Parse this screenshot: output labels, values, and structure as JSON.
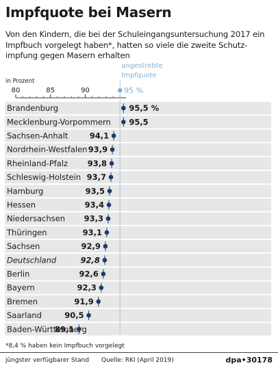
{
  "title": "Impfquote bei Masern",
  "subtitle": "Von den Kindern, die bei der Schuleingangsuntersuchung 2017 ein Impfbuch vorgelegt haben*, hatten so viele die zweite Schutz-impfung gegen Masern erhalten",
  "footnote": "*8,4 % haben kein Impfbuch vorgelegt",
  "footer": {
    "stand": "jüngster verfügbarer Stand",
    "source": "Quelle: RKI (April 2019)",
    "credit": "dpa•30178"
  },
  "colors": {
    "marker": "#1c3a6e",
    "row_bg": "#e7e7e7",
    "target": "#7fb2d9"
  },
  "chart_data": {
    "type": "dot",
    "xlabel": "in Prozent",
    "xticks": [
      80,
      85,
      90
    ],
    "xlim": [
      80,
      96
    ],
    "target": {
      "value": 95,
      "label_line1": "angestrebte",
      "label_line2": "Impfquote",
      "value_label": "95 %"
    },
    "categories": [
      "Brandenburg",
      "Mecklenburg-Vorpommern",
      "Sachsen-Anhalt",
      "Nordrhein-Westfalen",
      "Rheinland-Pfalz",
      "Schleswig-Holstein",
      "Hamburg",
      "Hessen",
      "Niedersachsen",
      "Thüringen",
      "Sachsen",
      "Deutschland",
      "Berlin",
      "Bayern",
      "Bremen",
      "Saarland",
      "Baden-Württemberg"
    ],
    "values": [
      95.5,
      95.5,
      94.1,
      93.9,
      93.8,
      93.7,
      93.5,
      93.4,
      93.3,
      93.1,
      92.9,
      92.8,
      92.6,
      92.3,
      91.9,
      90.5,
      89.1
    ],
    "value_labels": [
      "95,5 %",
      "95,5",
      "94,1",
      "93,9",
      "93,8",
      "93,7",
      "93,5",
      "93,4",
      "93,3",
      "93,1",
      "92,9",
      "92,8",
      "92,6",
      "92,3",
      "91,9",
      "90,5",
      "89,1"
    ],
    "italic": [
      "Deutschland"
    ]
  }
}
